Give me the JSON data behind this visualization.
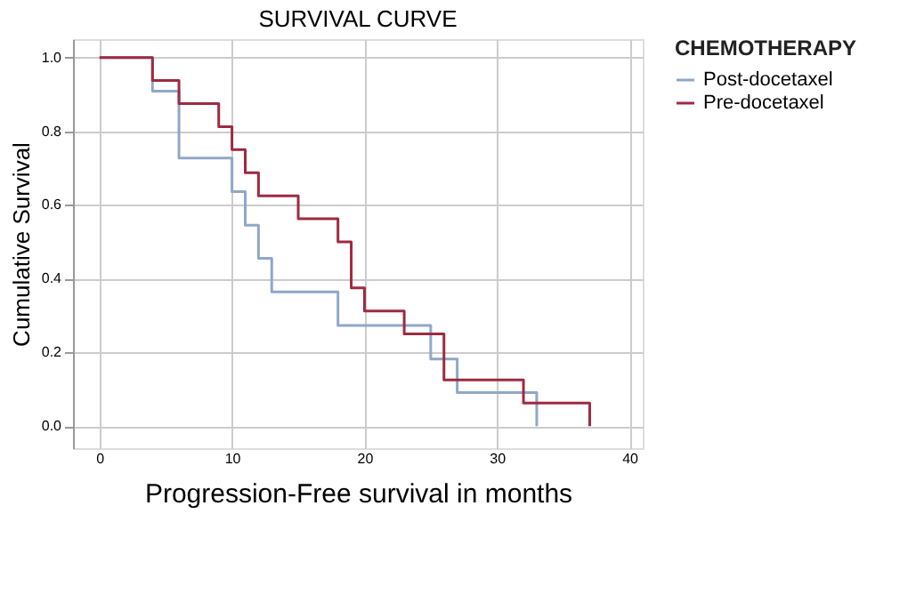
{
  "chart_data": {
    "type": "step",
    "title": "SURVIVAL CURVE",
    "xlabel": "Progression-Free survival in months",
    "ylabel": "Cumulative Survival",
    "legend_title": "CHEMOTHERAPY",
    "series": [
      {
        "name": "Post-docetaxel",
        "color": "#8fa8c8",
        "x": [
          0,
          4,
          6,
          10,
          11,
          12,
          13,
          18,
          25,
          27,
          33
        ],
        "values": [
          1.0,
          0.909,
          0.727,
          0.636,
          0.545,
          0.455,
          0.364,
          0.273,
          0.182,
          0.091,
          0.0
        ]
      },
      {
        "name": "Pre-docetaxel",
        "color": "#9e2a40",
        "x": [
          0,
          4,
          6,
          9,
          10,
          11,
          12,
          15,
          18,
          19,
          20,
          23,
          26,
          32,
          37
        ],
        "values": [
          1.0,
          0.9375,
          0.875,
          0.8125,
          0.75,
          0.6875,
          0.625,
          0.5625,
          0.5,
          0.375,
          0.3125,
          0.25,
          0.125,
          0.0625,
          0.0
        ]
      }
    ],
    "xlim": [
      -2,
      41
    ],
    "xticks": [
      0,
      10,
      20,
      30,
      40
    ],
    "ylim": [
      -0.06,
      1.05
    ],
    "yticks": [
      {
        "value": 0,
        "label": "0.0"
      },
      {
        "value": 0.2,
        "label": "0.2"
      },
      {
        "value": 0.4,
        "label": "0.4"
      },
      {
        "value": 0.6,
        "label": "0.6"
      },
      {
        "value": 0.8,
        "label": "0.8"
      },
      {
        "value": 1.0,
        "label": "1.0"
      }
    ],
    "grid": true,
    "legend": "top right",
    "line_style": "solid",
    "marker": "none"
  }
}
